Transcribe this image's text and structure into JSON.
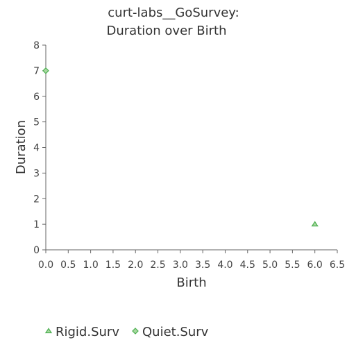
{
  "chart_data": {
    "type": "scatter",
    "title_lines": [
      "curt-labs__GoSurvey:",
      "Duration over Birth"
    ],
    "xlabel": "Birth",
    "ylabel": "Duration",
    "xlim": [
      0,
      6.5
    ],
    "ylim": [
      0,
      8
    ],
    "x_ticks": [
      "0.0",
      "0.5",
      "1.0",
      "1.5",
      "2.0",
      "2.5",
      "3.0",
      "3.5",
      "4.0",
      "4.5",
      "5.0",
      "5.5",
      "6.0",
      "6.5"
    ],
    "y_ticks": [
      "0",
      "1",
      "2",
      "3",
      "4",
      "5",
      "6",
      "7",
      "8"
    ],
    "grid": false,
    "legend_position": "bottom",
    "series": [
      {
        "name": "Rigid.Surv",
        "marker": "triangle",
        "color": "#4caf50",
        "fill": "#a8d8a0",
        "points": [
          {
            "x": 6.0,
            "y": 1
          }
        ]
      },
      {
        "name": "Quiet.Surv",
        "marker": "diamond",
        "color": "#4caf50",
        "fill": "#a8d8a0",
        "points": [
          {
            "x": 0.0,
            "y": 7
          }
        ]
      }
    ]
  }
}
